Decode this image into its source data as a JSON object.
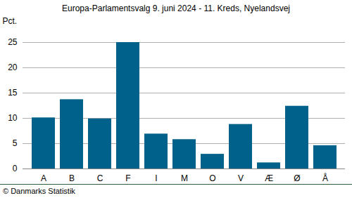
{
  "chart_data": {
    "type": "bar",
    "title": "Europa-Parlamentsvalg 9. juni 2024 - 11. Kreds, Nyelandsvej",
    "y_label": "Pct.",
    "caption": "© Danmarks Statistik",
    "categories": [
      "A",
      "B",
      "C",
      "F",
      "I",
      "M",
      "O",
      "V",
      "Æ",
      "Ø",
      "Å"
    ],
    "values": [
      10.1,
      13.7,
      9.9,
      25.0,
      6.9,
      5.8,
      2.9,
      8.8,
      1.2,
      12.4,
      4.6
    ],
    "color": "#00628b",
    "ylim": [
      0,
      25
    ],
    "yticks": [
      0,
      5,
      10,
      15,
      20,
      25
    ],
    "grid": true
  }
}
